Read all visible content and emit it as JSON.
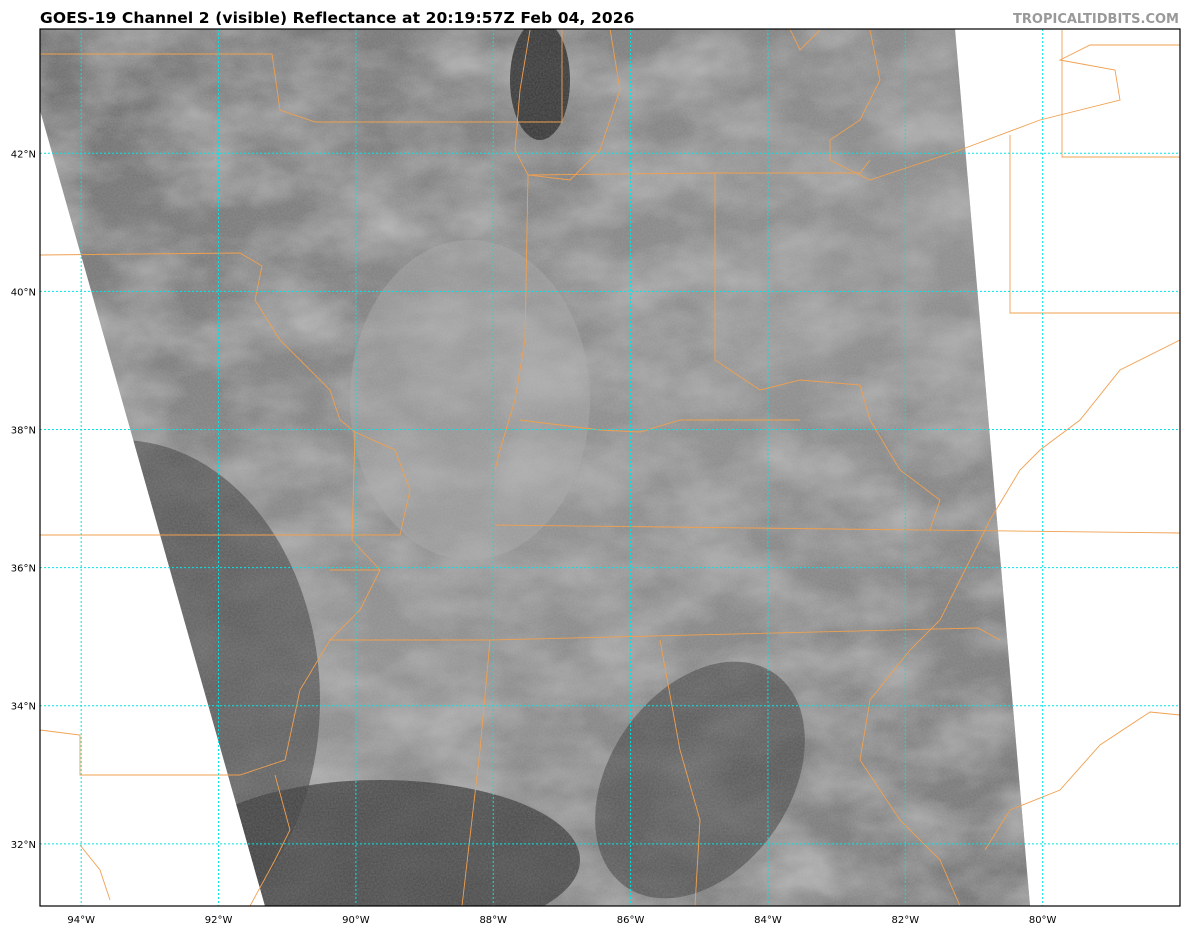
{
  "title": "GOES-19 Channel 2 (visible) Reflectance at 20:19:57Z Feb 04, 2026",
  "credit": "TROPICALTIDBITS.COM",
  "map": {
    "projection": "geostationary satellite swath",
    "extent": {
      "lon_min": -94.6,
      "lon_max": -78.0,
      "lat_min": 31.1,
      "lat_max": 43.8
    },
    "latitudes": [
      {
        "value": 42,
        "label": "42°N"
      },
      {
        "value": 40,
        "label": "40°N"
      },
      {
        "value": 38,
        "label": "38°N"
      },
      {
        "value": 36,
        "label": "36°N"
      },
      {
        "value": 34,
        "label": "34°N"
      },
      {
        "value": 32,
        "label": "32°N"
      }
    ],
    "longitudes": [
      {
        "value": -94,
        "label": "94°W"
      },
      {
        "value": -92,
        "label": "92°W"
      },
      {
        "value": -90,
        "label": "90°W"
      },
      {
        "value": -88,
        "label": "88°W"
      },
      {
        "value": -86,
        "label": "86°W"
      },
      {
        "value": -84,
        "label": "84°W"
      },
      {
        "value": -82,
        "label": "82°W"
      },
      {
        "value": -80,
        "label": "80°W"
      }
    ],
    "colors": {
      "gridlines": "#00e5e5",
      "boundaries": "#f0a050",
      "background": "#ffffff"
    }
  }
}
